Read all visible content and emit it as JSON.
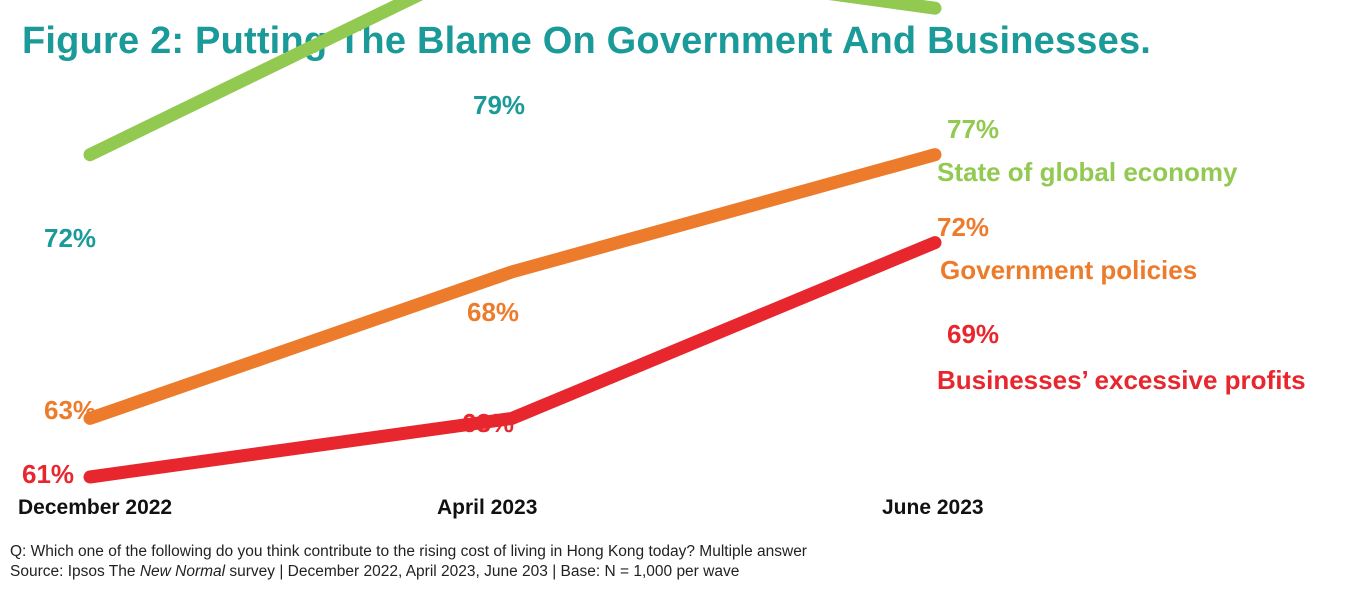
{
  "colors": {
    "title": "#1a9a98",
    "economy_line": "#92c951",
    "economy_label": "#92c951",
    "teal_label": "#1a9a98",
    "government": "#ec7c2c",
    "business": "#e8262d",
    "axis_text": "#111111"
  },
  "chart_data": {
    "type": "line",
    "title": "Figure 2: Putting The Blame On Government And Businesses.",
    "categories": [
      "December 2022",
      "April 2023",
      "June 2023"
    ],
    "xlabel": "",
    "ylabel": "",
    "ylim": [
      58,
      82
    ],
    "grid": false,
    "legend": "inline-right",
    "series": [
      {
        "id": "economy",
        "name": "State of global economy",
        "values": [
          72,
          79,
          77
        ],
        "labels": [
          "72%",
          "79%",
          "77%"
        ],
        "line_color": "#92c951",
        "label_colors": [
          "#1a9a98",
          "#1a9a98",
          "#92c951"
        ],
        "name_color": "#92c951"
      },
      {
        "id": "government",
        "name": "Government policies",
        "values": [
          63,
          68,
          72
        ],
        "labels": [
          "63%",
          "68%",
          "72%"
        ],
        "line_color": "#ec7c2c",
        "label_colors": [
          "#ec7c2c",
          "#ec7c2c",
          "#ec7c2c"
        ],
        "name_color": "#ec7c2c"
      },
      {
        "id": "business",
        "name": "Businesses’ excessive profits",
        "values": [
          61,
          63,
          69
        ],
        "labels": [
          "61%",
          "63%",
          "69%"
        ],
        "line_color": "#e8262d",
        "label_colors": [
          "#e8262d",
          "#e8262d",
          "#e8262d"
        ],
        "name_color": "#e8262d"
      }
    ]
  },
  "footnotes": {
    "question": "Q: Which one of the following do you think contribute to the rising cost of living in Hong Kong today? Multiple answer",
    "source_prefix": "Source: Ipsos The ",
    "source_italic": "New Normal",
    "source_suffix": " survey | December 2022, April 2023, June 203 | Base: N = 1,000 per wave"
  }
}
